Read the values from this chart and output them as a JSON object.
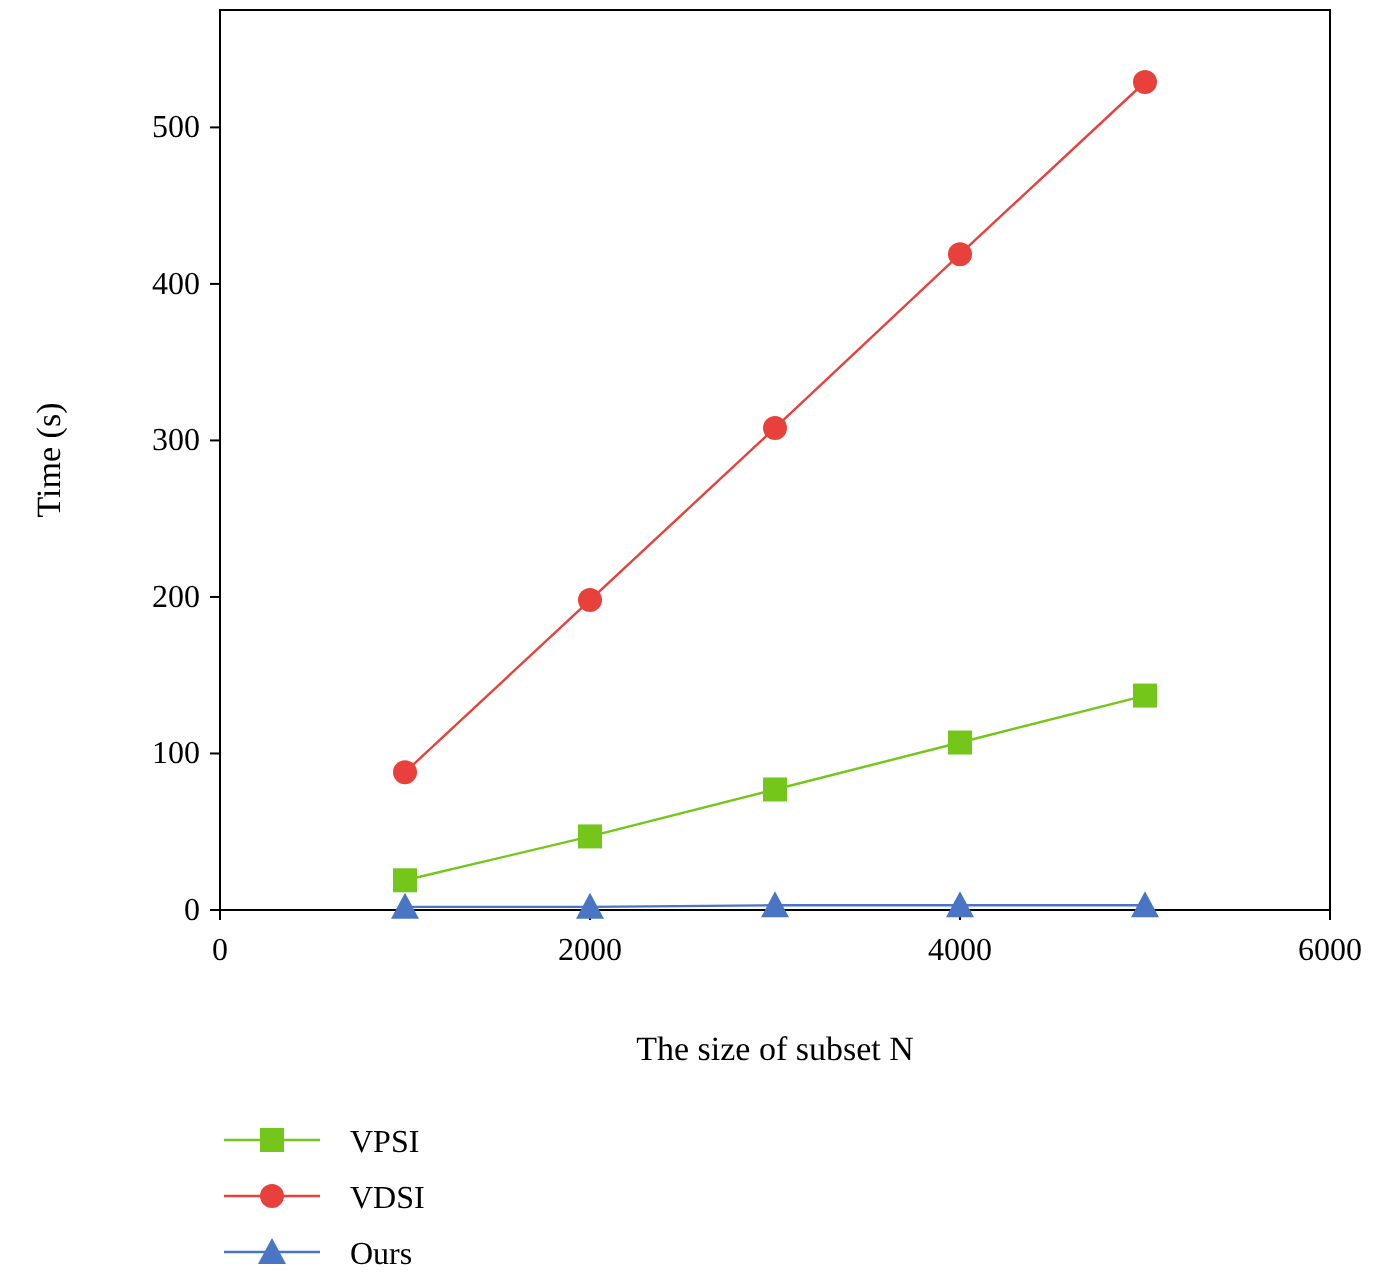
{
  "chart_data": {
    "type": "line",
    "xlabel": "The size of subset N",
    "ylabel": "Time (s)",
    "x": [
      1000,
      2000,
      3000,
      4000,
      5000
    ],
    "xlim": [
      0,
      6000
    ],
    "xticks": [
      0,
      2000,
      4000,
      6000
    ],
    "ylim": [
      0,
      575
    ],
    "yticks": [
      0,
      100,
      200,
      300,
      400,
      500
    ],
    "grid": false,
    "legend": "bottom left",
    "line_style": "solid",
    "series": [
      {
        "name": "VPSI",
        "color": "#74c61a",
        "marker": "square",
        "values": [
          19,
          47,
          77,
          107,
          137
        ]
      },
      {
        "name": "VDSI",
        "color": "#e8413c",
        "marker": "circle",
        "values": [
          88,
          198,
          308,
          419,
          529
        ]
      },
      {
        "name": "Ours",
        "color": "#4a74c4",
        "marker": "triangle",
        "values": [
          2,
          2,
          3,
          3,
          3
        ]
      }
    ]
  }
}
